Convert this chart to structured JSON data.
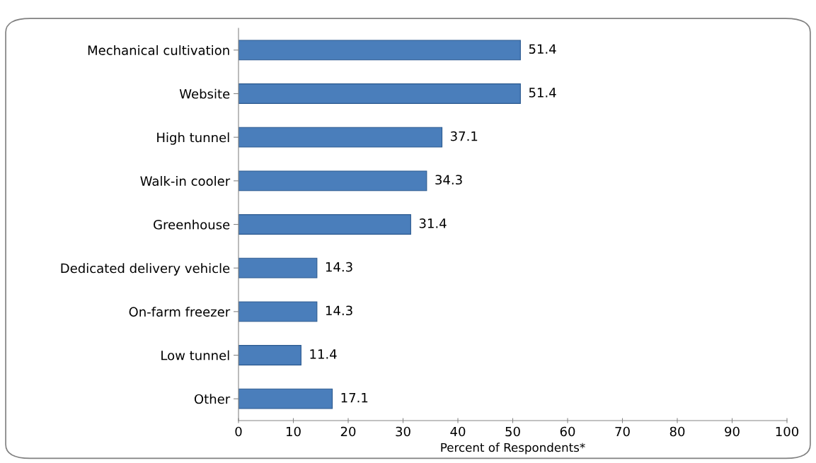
{
  "chart_data": {
    "type": "bar",
    "orientation": "horizontal",
    "xlabel": "Percent of Respondents*",
    "categories": [
      "Mechanical cultivation",
      "Website",
      "High tunnel",
      "Walk-in cooler",
      "Greenhouse",
      "Dedicated delivery vehicle",
      "On-farm freezer",
      "Low tunnel",
      "Other"
    ],
    "values": [
      51.4,
      51.4,
      37.1,
      34.3,
      31.4,
      14.3,
      14.3,
      11.4,
      17.1
    ],
    "color": "#4a7ebb",
    "xlim": [
      0,
      100
    ],
    "xticks": [
      0,
      10,
      20,
      30,
      40,
      50,
      60,
      70,
      80,
      90,
      100
    ],
    "data_labels": true,
    "grid": false,
    "legend": false
  }
}
